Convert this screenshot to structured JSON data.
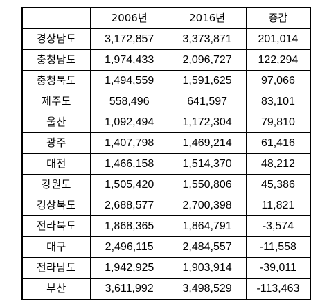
{
  "table": {
    "headers": [
      "",
      "2006년",
      "2016년",
      "증감"
    ],
    "rows": [
      [
        "경상남도",
        "3,172,857",
        "3,373,871",
        "201,014"
      ],
      [
        "충청남도",
        "1,974,433",
        "2,096,727",
        "122,294"
      ],
      [
        "충청북도",
        "1,494,559",
        "1,591,625",
        "97,066"
      ],
      [
        "제주도",
        "558,496",
        "641,597",
        "83,101"
      ],
      [
        "울산",
        "1,092,494",
        "1,172,304",
        "79,810"
      ],
      [
        "광주",
        "1,407,798",
        "1,469,214",
        "61,416"
      ],
      [
        "대전",
        "1,466,158",
        "1,514,370",
        "48,212"
      ],
      [
        "강원도",
        "1,505,420",
        "1,550,806",
        "45,386"
      ],
      [
        "경상북도",
        "2,688,577",
        "2,700,398",
        "11,821"
      ],
      [
        "전라북도",
        "1,868,365",
        "1,864,791",
        "-3,574"
      ],
      [
        "대구",
        "2,496,115",
        "2,484,557",
        "-11,558"
      ],
      [
        "전라남도",
        "1,942,925",
        "1,903,914",
        "-39,011"
      ],
      [
        "부산",
        "3,611,992",
        "3,498,529",
        "-113,463"
      ]
    ]
  }
}
